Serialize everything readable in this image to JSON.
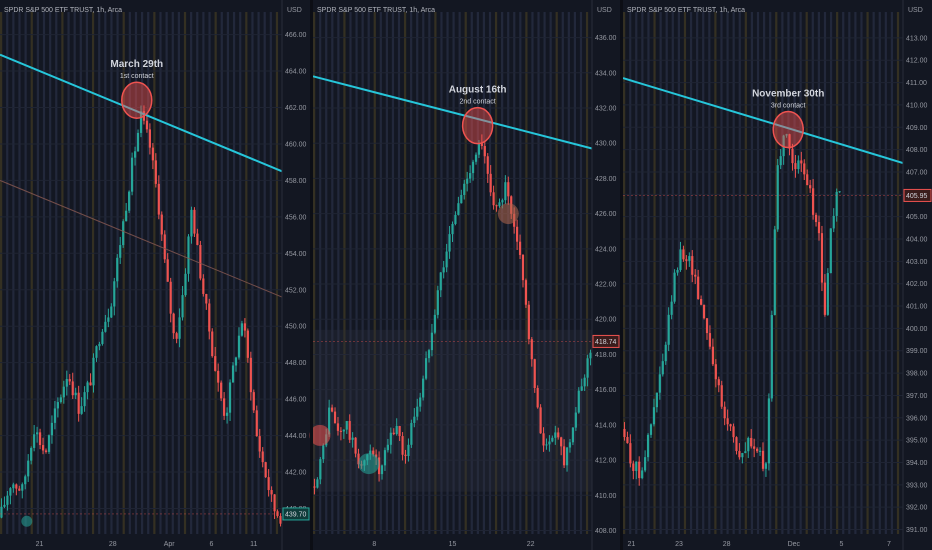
{
  "panels": [
    {
      "chart_data": {
        "type": "candlestick",
        "title": "SPDR S&P 500 ETF TRUST, 1h, Arca",
        "ylabel": "USD",
        "ylim": [
          438.6,
          466.8
        ],
        "y_ticks": [
          440,
          442,
          444,
          446,
          448,
          450,
          452,
          454,
          456,
          458,
          460,
          462,
          464,
          466
        ],
        "x_ticks": [
          {
            "label": "21",
            "x": 0.14
          },
          {
            "label": "28",
            "x": 0.4
          },
          {
            "label": "Apr",
            "x": 0.6
          },
          {
            "label": "6",
            "x": 0.75
          },
          {
            "label": "11",
            "x": 0.9
          }
        ],
        "price_path": [
          [
            0,
            439.5
          ],
          [
            0.04,
            441.5
          ],
          [
            0.08,
            441
          ],
          [
            0.12,
            444.5
          ],
          [
            0.16,
            443
          ],
          [
            0.2,
            445.5
          ],
          [
            0.24,
            447.5
          ],
          [
            0.28,
            445.5
          ],
          [
            0.32,
            447
          ],
          [
            0.36,
            450
          ],
          [
            0.39,
            451
          ],
          [
            0.42,
            454
          ],
          [
            0.44,
            456
          ],
          [
            0.47,
            459
          ],
          [
            0.5,
            461.5
          ],
          [
            0.53,
            460
          ],
          [
            0.56,
            457
          ],
          [
            0.58,
            454
          ],
          [
            0.62,
            449
          ],
          [
            0.65,
            452
          ],
          [
            0.68,
            456.5
          ],
          [
            0.71,
            453
          ],
          [
            0.74,
            450
          ],
          [
            0.77,
            447
          ],
          [
            0.8,
            445
          ],
          [
            0.83,
            448
          ],
          [
            0.86,
            450.5
          ],
          [
            0.88,
            448
          ],
          [
            0.91,
            444
          ],
          [
            0.94,
            442
          ],
          [
            0.97,
            440
          ],
          [
            1.0,
            439.5
          ]
        ],
        "last_price": 439.7,
        "last_price_label": "439.70",
        "trendline": {
          "x1": 0,
          "y1": 464.9,
          "x2": 1,
          "y2": 458.5
        },
        "secondary_line": {
          "x1": 0,
          "y1": 458.0,
          "x2": 1,
          "y2": 451.6
        },
        "annotation": {
          "title": "March 29th",
          "subtitle": "1st contact",
          "x": 0.485,
          "y": 462.4
        },
        "small_markers": [
          {
            "x": 0.095,
            "y": 439.3,
            "color": "#26a69a"
          }
        ]
      }
    },
    {
      "chart_data": {
        "type": "candlestick",
        "title": "SPDR S&P 500 ETF TRUST, 1h, Arca",
        "ylabel": "USD",
        "ylim": [
          407.8,
          437.0
        ],
        "y_ticks": [
          408,
          410,
          412,
          414,
          416,
          418,
          420,
          422,
          424,
          426,
          428,
          430,
          432,
          434,
          436
        ],
        "x_ticks": [
          {
            "label": "8",
            "x": 0.22
          },
          {
            "label": "15",
            "x": 0.5
          },
          {
            "label": "22",
            "x": 0.78
          }
        ],
        "price_path": [
          [
            0,
            410.5
          ],
          [
            0.03,
            412
          ],
          [
            0.06,
            415
          ],
          [
            0.09,
            413.5
          ],
          [
            0.12,
            414
          ],
          [
            0.15,
            412.5
          ],
          [
            0.18,
            411.5
          ],
          [
            0.21,
            413
          ],
          [
            0.24,
            411
          ],
          [
            0.27,
            413
          ],
          [
            0.3,
            414
          ],
          [
            0.33,
            412
          ],
          [
            0.36,
            414.5
          ],
          [
            0.39,
            416
          ],
          [
            0.42,
            419
          ],
          [
            0.45,
            422
          ],
          [
            0.48,
            424
          ],
          [
            0.51,
            426
          ],
          [
            0.54,
            427.5
          ],
          [
            0.57,
            429
          ],
          [
            0.6,
            430
          ],
          [
            0.63,
            428
          ],
          [
            0.66,
            426
          ],
          [
            0.69,
            427.5
          ],
          [
            0.72,
            425
          ],
          [
            0.75,
            423
          ],
          [
            0.78,
            418
          ],
          [
            0.81,
            414
          ],
          [
            0.84,
            412.5
          ],
          [
            0.87,
            414
          ],
          [
            0.9,
            412
          ],
          [
            0.93,
            414
          ],
          [
            0.96,
            416
          ],
          [
            1.0,
            418.7
          ]
        ],
        "last_price": 418.74,
        "last_price_label": "418.74",
        "trendline": {
          "x1": 0,
          "y1": 433.8,
          "x2": 1,
          "y2": 429.7
        },
        "annotation": {
          "title": "August 16th",
          "subtitle": "2nd contact",
          "x": 0.59,
          "y": 431.0
        },
        "small_markers": [
          {
            "x": 0.025,
            "y": 413.4,
            "color": "#ef5350"
          },
          {
            "x": 0.2,
            "y": 411.8,
            "color": "#26a69a"
          },
          {
            "x": 0.7,
            "y": 426.0,
            "color": "#b2674f"
          }
        ],
        "band": {
          "y1": 419.4,
          "y2": 410.2
        }
      }
    },
    {
      "chart_data": {
        "type": "candlestick",
        "title": "SPDR S&P 500 ETF TRUST, 1h, Arca",
        "ylabel": "USD",
        "ylim": [
          390.8,
          413.8
        ],
        "y_ticks": [
          391,
          392,
          393,
          394,
          395,
          396,
          397,
          398,
          399,
          400,
          401,
          402,
          403,
          404,
          405,
          406,
          407,
          408,
          409,
          410,
          411,
          412,
          413
        ],
        "x_ticks": [
          {
            "label": "21",
            "x": 0.03
          },
          {
            "label": "23",
            "x": 0.2
          },
          {
            "label": "28",
            "x": 0.37
          },
          {
            "label": "Dec",
            "x": 0.61
          },
          {
            "label": "5",
            "x": 0.78
          },
          {
            "label": "7",
            "x": 0.95
          }
        ],
        "price_path": [
          [
            0,
            395.5
          ],
          [
            0.03,
            394
          ],
          [
            0.06,
            393.5
          ],
          [
            0.09,
            395
          ],
          [
            0.12,
            397
          ],
          [
            0.15,
            399
          ],
          [
            0.18,
            402
          ],
          [
            0.21,
            403.5
          ],
          [
            0.24,
            403
          ],
          [
            0.27,
            401.5
          ],
          [
            0.3,
            400
          ],
          [
            0.33,
            398
          ],
          [
            0.36,
            396
          ],
          [
            0.39,
            395.5
          ],
          [
            0.42,
            394
          ],
          [
            0.45,
            395
          ],
          [
            0.48,
            394.5
          ],
          [
            0.51,
            393.5
          ],
          [
            0.53,
            400
          ],
          [
            0.55,
            407.5
          ],
          [
            0.58,
            408.5
          ],
          [
            0.61,
            407.5
          ],
          [
            0.64,
            407
          ],
          [
            0.67,
            406
          ],
          [
            0.7,
            404
          ],
          [
            0.72,
            400.5
          ],
          [
            0.74,
            404
          ],
          [
            0.76,
            406
          ],
          [
            0.78,
            405.8
          ]
        ],
        "last_price": 405.95,
        "last_price_label": "405.95",
        "trendline": {
          "x1": 0,
          "y1": 411.2,
          "x2": 1,
          "y2": 407.4
        },
        "annotation": {
          "title": "November 30th",
          "subtitle": "3rd contact",
          "x": 0.59,
          "y": 408.9
        }
      }
    }
  ]
}
